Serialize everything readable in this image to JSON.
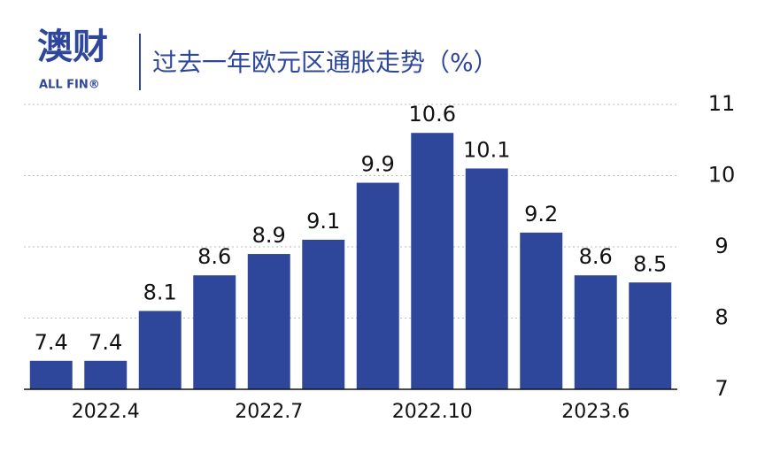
{
  "logo": {
    "text": "澳财",
    "sub": "ALL FIN®"
  },
  "chart_data": {
    "type": "bar",
    "title": "过去一年欧元区通胀走势（%）",
    "categories": [
      "",
      "2022.4",
      "",
      "",
      "2022.7",
      "",
      "",
      "2022.10",
      "",
      "",
      "2023.6",
      ""
    ],
    "values": [
      7.4,
      7.4,
      8.1,
      8.6,
      8.9,
      9.1,
      9.9,
      10.6,
      10.1,
      9.2,
      8.6,
      8.5
    ],
    "color": "#2f479a",
    "ylim": [
      7,
      11
    ],
    "yticks": [
      7,
      8,
      9,
      10,
      11
    ],
    "grid": true,
    "y_axis_side": "right"
  }
}
